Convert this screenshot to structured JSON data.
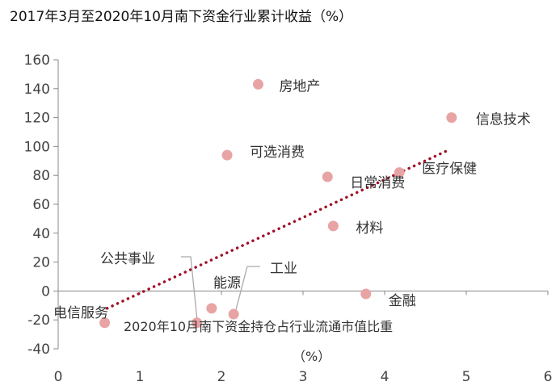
{
  "chart_data": {
    "type": "scatter",
    "title": "2017年3月至2020年10月南下资金行业累计收益（%）",
    "xlabel": "2020年10月南下资金持仓占行业流通市值比重",
    "xunit": "（%）",
    "ylabel": "",
    "xlim": [
      0,
      6
    ],
    "ylim": [
      -40,
      160
    ],
    "xticks": [
      0,
      1,
      2,
      3,
      4,
      5,
      6
    ],
    "yticks": [
      -40,
      -20,
      0,
      20,
      40,
      60,
      80,
      100,
      120,
      140,
      160
    ],
    "grid": false,
    "point_color": "#e8a4a4",
    "trendline": {
      "type": "linear",
      "color": "#a0102a",
      "style": "dotted",
      "from": [
        0.6,
        -12
      ],
      "to": [
        4.8,
        98
      ]
    },
    "points": [
      {
        "name": "房地产",
        "x": 2.45,
        "y": 143
      },
      {
        "name": "信息技术",
        "x": 4.82,
        "y": 120
      },
      {
        "name": "可选消费",
        "x": 2.07,
        "y": 94
      },
      {
        "name": "日常消费",
        "x": 3.3,
        "y": 79
      },
      {
        "name": "医疗保健",
        "x": 4.18,
        "y": 82
      },
      {
        "name": "材料",
        "x": 3.37,
        "y": 45
      },
      {
        "name": "公共事业",
        "x": 1.7,
        "y": -22
      },
      {
        "name": "能源",
        "x": 1.88,
        "y": -12
      },
      {
        "name": "工业",
        "x": 2.15,
        "y": -16
      },
      {
        "name": "金融",
        "x": 3.77,
        "y": -2
      },
      {
        "name": "电信服务",
        "x": 0.57,
        "y": -22
      }
    ]
  }
}
